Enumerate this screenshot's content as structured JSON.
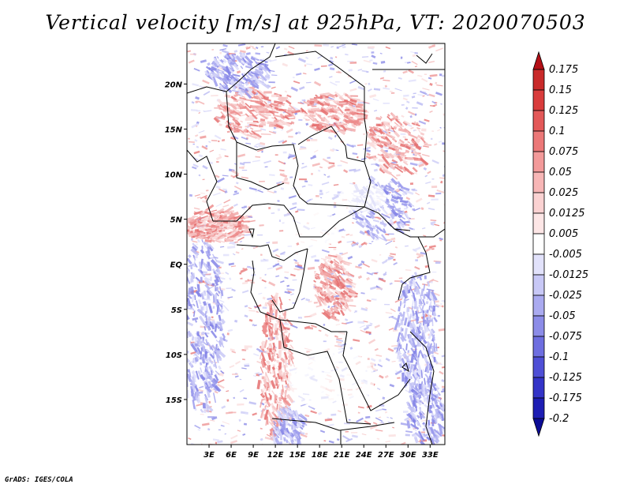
{
  "title": "Vertical velocity [m/s] at 925hPa, VT: 2020070503",
  "credit": "GrADS: IGES/COLA",
  "map": {
    "lon_range": [
      0,
      35
    ],
    "lat_range": [
      -20,
      24.5
    ],
    "lat_ticks": [
      {
        "value": 20,
        "label": "20N"
      },
      {
        "value": 15,
        "label": "15N"
      },
      {
        "value": 10,
        "label": "10N"
      },
      {
        "value": 5,
        "label": "5N"
      },
      {
        "value": 0,
        "label": "EQ"
      },
      {
        "value": -5,
        "label": "5S"
      },
      {
        "value": -10,
        "label": "10S"
      },
      {
        "value": -15,
        "label": "15S"
      }
    ],
    "lon_ticks": [
      {
        "value": 3,
        "label": "3E"
      },
      {
        "value": 6,
        "label": "6E"
      },
      {
        "value": 9,
        "label": "9E"
      },
      {
        "value": 12,
        "label": "12E"
      },
      {
        "value": 15,
        "label": "15E"
      },
      {
        "value": 18,
        "label": "18E"
      },
      {
        "value": 21,
        "label": "21E"
      },
      {
        "value": 24,
        "label": "24E"
      },
      {
        "value": 27,
        "label": "27E"
      },
      {
        "value": 30,
        "label": "30E"
      },
      {
        "value": 33,
        "label": "33E"
      }
    ]
  },
  "colorbar": {
    "levels": [
      "0.175",
      "0.15",
      "0.125",
      "0.1",
      "0.075",
      "0.05",
      "0.025",
      "0.0125",
      "0.005",
      "-0.005",
      "-0.0125",
      "-0.025",
      "-0.05",
      "-0.075",
      "-0.1",
      "-0.125",
      "-0.175",
      "-0.2"
    ],
    "colors": [
      "#b40f16",
      "#c92a2a",
      "#d93c3c",
      "#e35858",
      "#ec7878",
      "#f39a9a",
      "#f7b6b6",
      "#fbd2d2",
      "#fde6e6",
      "#ffffff",
      "#e2e2fb",
      "#c8c8f6",
      "#aaaaf0",
      "#8c8ce8",
      "#6e6ee0",
      "#4f4fd6",
      "#3434c8",
      "#1e1eb4",
      "#0c0c96"
    ]
  },
  "colors": {
    "positive": "#e05050",
    "negative": "#5050e0",
    "coast": "#000000",
    "frame": "#000000"
  }
}
